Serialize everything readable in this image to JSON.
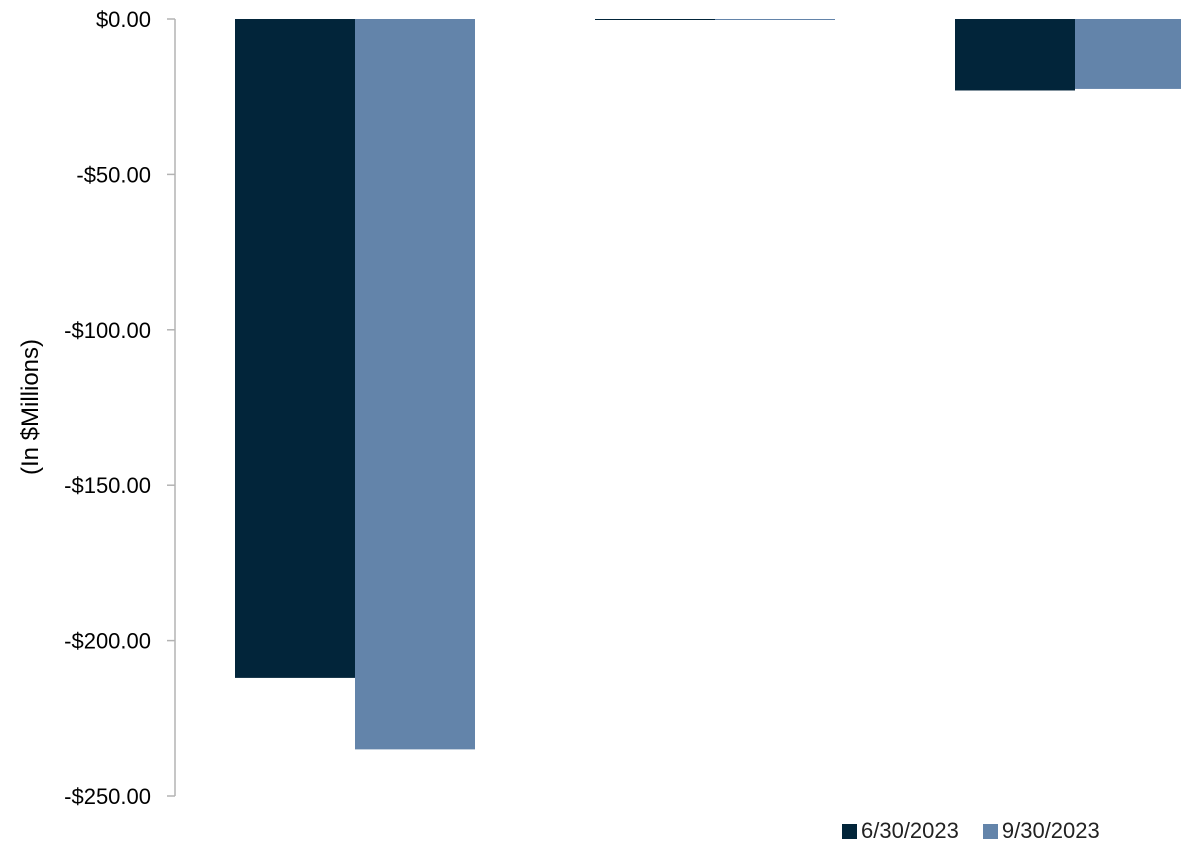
{
  "chart_data": {
    "type": "bar",
    "categories": [
      "",
      "",
      ""
    ],
    "series": [
      {
        "name": "6/30/2023",
        "color": "#02253A",
        "values": [
          -212.0,
          -0.3,
          -23.0
        ]
      },
      {
        "name": "9/30/2023",
        "color": "#6384AA",
        "values": [
          -235.0,
          -0.3,
          -22.5
        ]
      }
    ],
    "ylabel": "(In $Millions)",
    "ylim": [
      -250,
      0
    ],
    "yticks": [
      0,
      -50,
      -100,
      -150,
      -200,
      -250
    ],
    "ytick_labels": [
      "$0.00",
      "-$50.00",
      "-$100.00",
      "-$150.00",
      "-$200.00",
      "-$250.00"
    ],
    "grid": false,
    "legend_position": "bottom-right"
  }
}
